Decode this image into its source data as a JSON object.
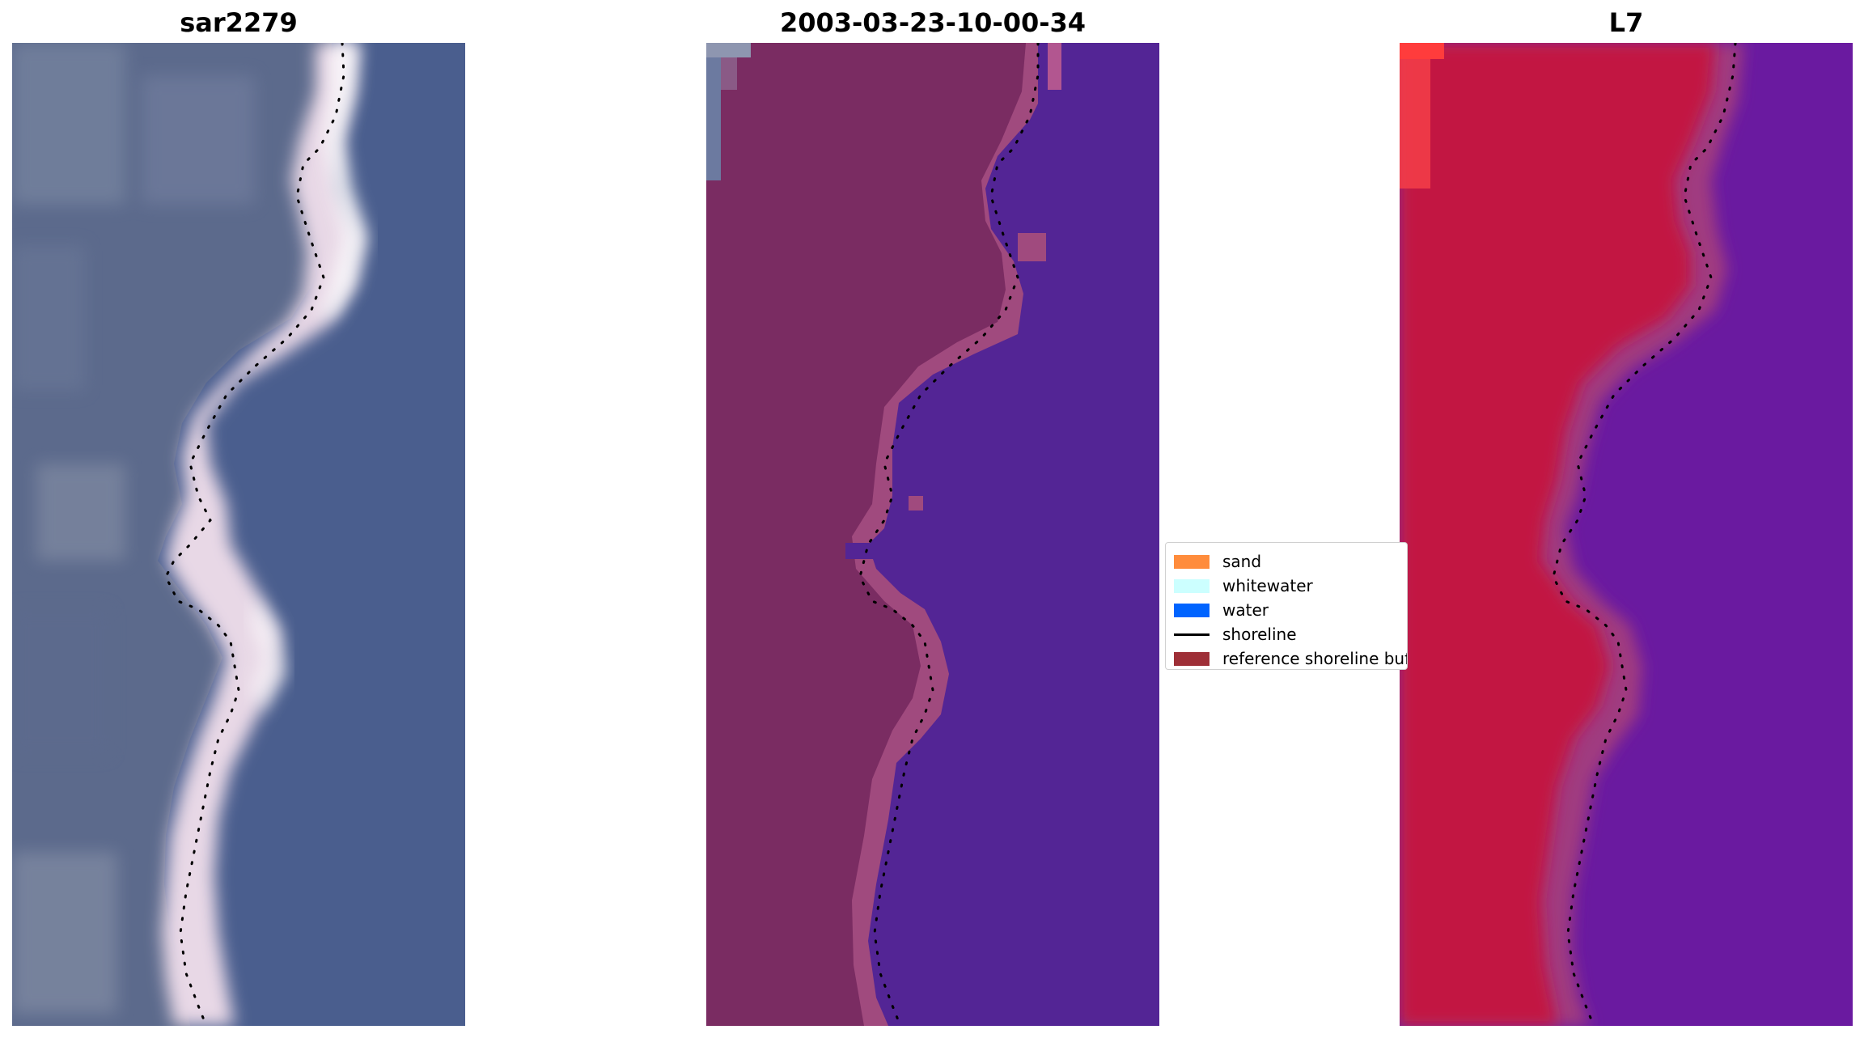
{
  "panels": {
    "rgb": {
      "title": "sar2279"
    },
    "classified": {
      "title": "2003-03-23-10-00-34"
    },
    "index": {
      "title": "L7"
    }
  },
  "legend": {
    "items": [
      {
        "label": "sand",
        "kind": "patch",
        "color": "#ff8c3c"
      },
      {
        "label": "whitewater",
        "kind": "patch",
        "color": "#ccffff"
      },
      {
        "label": "water",
        "kind": "patch",
        "color": "#0064ff"
      },
      {
        "label": "shoreline",
        "kind": "line",
        "color": "#000000"
      },
      {
        "label": "reference shoreline buffer",
        "kind": "patch",
        "color": "#9e2f37"
      }
    ]
  },
  "colors": {
    "rgb_land": "#5c6a8c",
    "rgb_water": "#4a5e8e",
    "rgb_beach": "#e8d8e6",
    "class_land": "#7a2c62",
    "class_buffer": "#a04a7e",
    "class_water": "#532595",
    "ndwi_land": "#c21542",
    "ndwi_water": "#6a1aa0",
    "ndwi_transition": "#a03a80"
  }
}
